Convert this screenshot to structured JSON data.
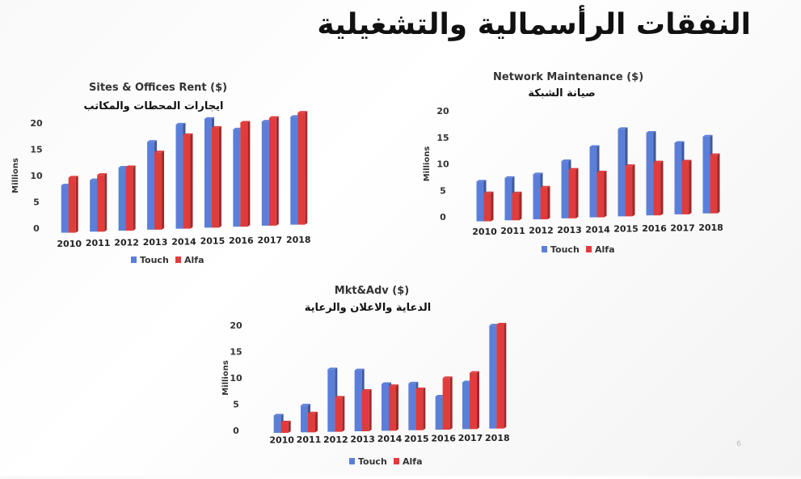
{
  "slide": {
    "title": "النفقات الرأسمالية والتشغيلية",
    "page_number": "6"
  },
  "chart_data": [
    {
      "type": "bar",
      "title": "Sites & Offices Rent ($)",
      "subtitle": "ايجارات المحطات والمكاتب",
      "ylabel": "Millions",
      "ylim": [
        0,
        20
      ],
      "yticks": [
        "0",
        "5",
        "10",
        "15",
        "20"
      ],
      "categories": [
        "2010",
        "2011",
        "2012",
        "2013",
        "2014",
        "2015",
        "2016",
        "2017",
        "2018"
      ],
      "series": [
        {
          "name": "Touch",
          "color": "#5b7fd9",
          "values": [
            9.0,
            9.8,
            12.0,
            16.7,
            19.8,
            20.7,
            18.5,
            19.8,
            20.5
          ]
        },
        {
          "name": "Alfa",
          "color": "#e03c3c",
          "values": [
            10.5,
            10.8,
            12.1,
            14.7,
            17.8,
            19.0,
            19.8,
            20.5,
            21.3
          ]
        }
      ],
      "legend": "bottom"
    },
    {
      "type": "bar",
      "title": "Network Maintenance ($)",
      "subtitle": "صيانة الشبكة",
      "ylabel": "Millions",
      "ylim": [
        0,
        20
      ],
      "yticks": [
        "0",
        "5",
        "10",
        "15",
        "20"
      ],
      "categories": [
        "2010",
        "2011",
        "2012",
        "2013",
        "2014",
        "2015",
        "2016",
        "2017",
        "2018"
      ],
      "series": [
        {
          "name": "Touch",
          "color": "#5b7fd9",
          "values": [
            7.5,
            8.0,
            8.5,
            10.8,
            13.3,
            16.5,
            15.6,
            13.5,
            14.5
          ]
        },
        {
          "name": "Alfa",
          "color": "#e03c3c",
          "values": [
            5.3,
            5.1,
            6.0,
            9.2,
            8.5,
            9.5,
            10.0,
            10.0,
            11.0
          ]
        }
      ],
      "legend": "bottom"
    },
    {
      "type": "bar",
      "title": "Mkt&Adv ($)",
      "subtitle": "الدعاية والاعلان والرعاية",
      "ylabel": "Millions",
      "ylim": [
        0,
        20
      ],
      "yticks": [
        "0",
        "5",
        "10",
        "15",
        "20"
      ],
      "categories": [
        "2010",
        "2011",
        "2012",
        "2013",
        "2014",
        "2015",
        "2016",
        "2017",
        "2018"
      ],
      "series": [
        {
          "name": "Touch",
          "color": "#5b7fd9",
          "values": [
            3.3,
            5.1,
            11.9,
            11.6,
            8.9,
            8.9,
            6.3,
            8.9,
            19.6
          ]
        },
        {
          "name": "Alfa",
          "color": "#e03c3c",
          "values": [
            2.0,
            3.6,
            6.5,
            7.7,
            8.5,
            7.8,
            9.8,
            10.7,
            19.8
          ]
        }
      ],
      "legend": "bottom"
    }
  ]
}
